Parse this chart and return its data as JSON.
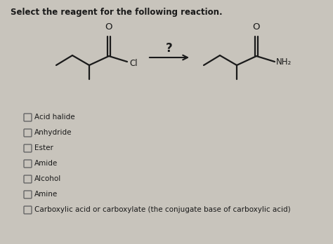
{
  "title": "Select the reagent for the following reaction.",
  "background_color": "#c8c4bc",
  "text_color": "#1a1a1a",
  "question_mark": "?",
  "options": [
    "Acid halide",
    "Anhydride",
    "Ester",
    "Amide",
    "Alcohol",
    "Amine",
    "Carboxylic acid or carboxylate (the conjugate base of carboxylic acid)"
  ],
  "reactant_cl": "Cl",
  "product_nh2": "NH₂",
  "oxygen_label": "O",
  "fig_width": 4.74,
  "fig_height": 3.48,
  "dpi": 100,
  "lw": 1.6,
  "title_fontsize": 8.5,
  "chem_fontsize": 8.5,
  "option_fontsize": 7.5
}
